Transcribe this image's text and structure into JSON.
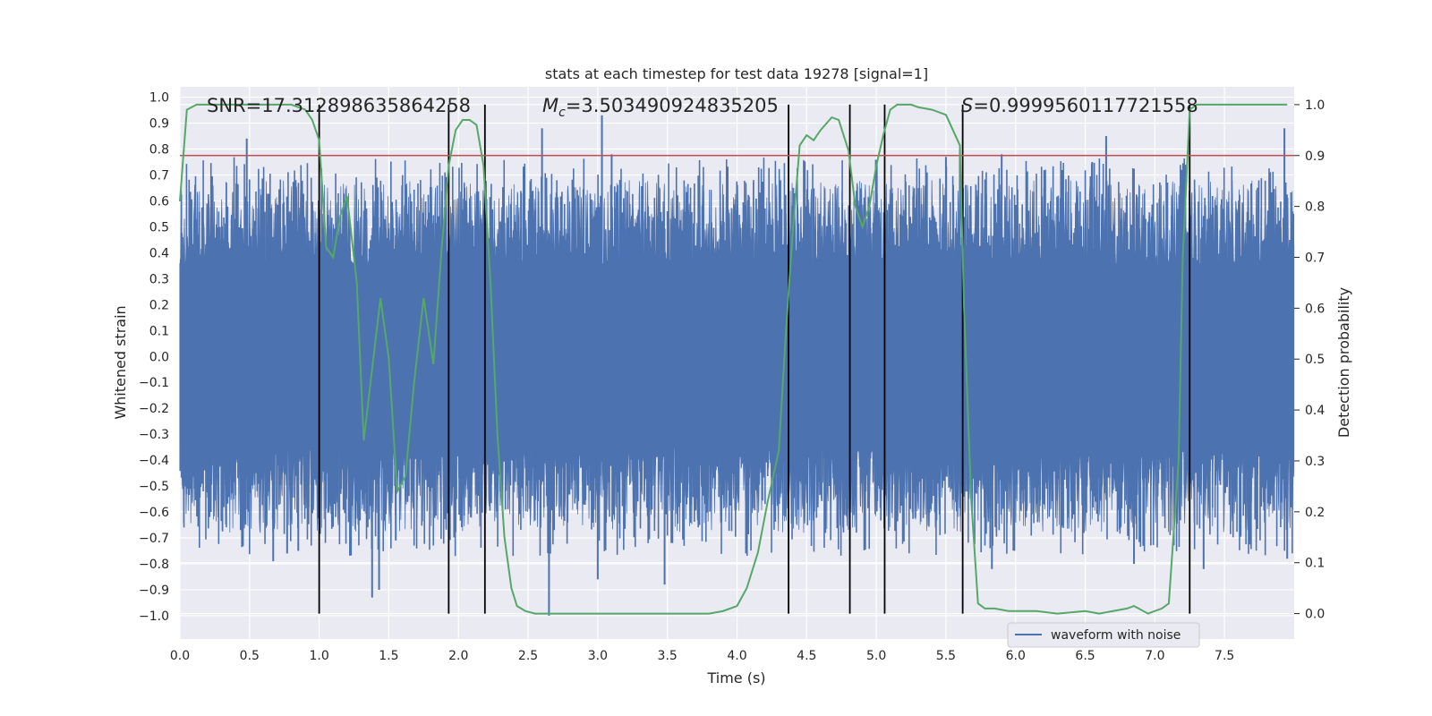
{
  "chart_data": {
    "type": "line",
    "title": "stats at each timestep for test data 19278 [signal=1]",
    "xlabel": "Time (s)",
    "ylabel_left": "Whitened strain",
    "ylabel_right": "Detection probability",
    "xlim": [
      0.0,
      8.0
    ],
    "ylim_left": [
      -1.09,
      1.04
    ],
    "ylim_right": [
      -0.05,
      1.035
    ],
    "xticks": [
      "0.0",
      "0.5",
      "1.0",
      "1.5",
      "2.0",
      "2.5",
      "3.0",
      "3.5",
      "4.0",
      "4.5",
      "5.0",
      "5.5",
      "6.0",
      "6.5",
      "7.0",
      "7.5"
    ],
    "yticks_left": [
      "1.0",
      "0.9",
      "0.8",
      "0.7",
      "0.6",
      "0.5",
      "0.4",
      "0.3",
      "0.2",
      "0.1",
      "0.0",
      "−0.1",
      "−0.2",
      "−0.3",
      "−0.4",
      "−0.5",
      "−0.6",
      "−0.7",
      "−0.8",
      "−0.9",
      "−1.0"
    ],
    "yticks_right": [
      "1.0",
      "0.9",
      "0.8",
      "0.7",
      "0.6",
      "0.5",
      "0.4",
      "0.3",
      "0.2",
      "0.1",
      "0.0"
    ],
    "annotations": {
      "snr": "SNR=17.312898635864258",
      "mc_symbol": "M",
      "mc_sub": "c",
      "mc_value": "=3.503490924835205",
      "s_symbol": "S",
      "s_value": "=0.9999560117721558"
    },
    "threshold_right": 0.9,
    "waveform": {
      "name": "waveform with noise",
      "color": "#4c72b0",
      "core_amplitude": 0.35,
      "spikes": [
        {
          "t": 0.48,
          "v": 0.84
        },
        {
          "t": 0.67,
          "v": -0.79
        },
        {
          "t": 0.77,
          "v": -0.76
        },
        {
          "t": 0.85,
          "v": -0.75
        },
        {
          "t": 1.38,
          "v": -0.93
        },
        {
          "t": 1.43,
          "v": -0.9
        },
        {
          "t": 1.55,
          "v": -0.71
        },
        {
          "t": 2.6,
          "v": 0.88
        },
        {
          "t": 2.65,
          "v": -1.0
        },
        {
          "t": 3.0,
          "v": -0.86
        },
        {
          "t": 3.03,
          "v": 0.93
        },
        {
          "t": 3.1,
          "v": 0.78
        },
        {
          "t": 3.48,
          "v": -0.88
        },
        {
          "t": 5.6,
          "v": 0.8
        },
        {
          "t": 5.5,
          "v": 0.77
        },
        {
          "t": 5.83,
          "v": -0.82
        },
        {
          "t": 5.9,
          "v": 0.78
        },
        {
          "t": 6.55,
          "v": 0.75
        },
        {
          "t": 6.65,
          "v": 0.85
        },
        {
          "t": 6.85,
          "v": -0.8
        },
        {
          "t": 7.35,
          "v": -0.82
        },
        {
          "t": 7.93,
          "v": 0.88
        },
        {
          "t": 7.95,
          "v": -0.78
        }
      ]
    },
    "probability": {
      "name": "detection probability",
      "color": "#55a868",
      "x": [
        0.0,
        0.05,
        0.12,
        0.2,
        0.3,
        0.5,
        0.7,
        0.8,
        0.9,
        0.95,
        1.0,
        1.05,
        1.1,
        1.15,
        1.2,
        1.27,
        1.32,
        1.38,
        1.44,
        1.5,
        1.56,
        1.62,
        1.68,
        1.75,
        1.82,
        1.88,
        1.93,
        1.98,
        2.03,
        2.08,
        2.13,
        2.18,
        2.23,
        2.28,
        2.33,
        2.38,
        2.42,
        2.48,
        2.55,
        2.6,
        2.7,
        2.9,
        3.2,
        3.4,
        3.6,
        3.8,
        3.9,
        4.0,
        4.07,
        4.15,
        4.22,
        4.3,
        4.35,
        4.4,
        4.45,
        4.5,
        4.55,
        4.6,
        4.68,
        4.73,
        4.8,
        4.85,
        4.9,
        4.95,
        5.0,
        5.05,
        5.1,
        5.15,
        5.2,
        5.25,
        5.3,
        5.4,
        5.5,
        5.55,
        5.6,
        5.63,
        5.68,
        5.73,
        5.78,
        5.85,
        5.95,
        6.05,
        6.15,
        6.3,
        6.5,
        6.6,
        6.7,
        6.8,
        6.85,
        6.95,
        7.05,
        7.1,
        7.17,
        7.2,
        7.25,
        7.3,
        7.35,
        7.5,
        7.7,
        7.95
      ],
      "y": [
        0.81,
        0.99,
        1.0,
        1.0,
        1.0,
        1.0,
        1.0,
        1.0,
        0.99,
        0.97,
        0.93,
        0.72,
        0.7,
        0.78,
        0.82,
        0.65,
        0.34,
        0.48,
        0.62,
        0.5,
        0.24,
        0.27,
        0.45,
        0.62,
        0.49,
        0.72,
        0.88,
        0.95,
        0.97,
        0.97,
        0.96,
        0.88,
        0.65,
        0.35,
        0.15,
        0.05,
        0.015,
        0.005,
        0.0,
        0.0,
        0.0,
        0.0,
        0.0,
        0.0,
        0.0,
        0.0,
        0.005,
        0.015,
        0.05,
        0.12,
        0.22,
        0.32,
        0.55,
        0.75,
        0.92,
        0.94,
        0.93,
        0.95,
        0.975,
        0.97,
        0.91,
        0.8,
        0.76,
        0.8,
        0.88,
        0.94,
        0.99,
        1.0,
        1.0,
        1.0,
        0.995,
        0.99,
        0.98,
        0.95,
        0.92,
        0.6,
        0.23,
        0.02,
        0.01,
        0.01,
        0.005,
        0.005,
        0.005,
        0.0,
        0.005,
        0.0,
        0.005,
        0.01,
        0.015,
        0.0,
        0.01,
        0.02,
        0.3,
        0.7,
        0.99,
        1.0,
        1.0,
        1.0,
        1.0,
        1.0
      ]
    },
    "vertical_lines_time": [
      1.0,
      1.93,
      2.19,
      4.37,
      4.81,
      5.06,
      5.62,
      7.25
    ],
    "legend": {
      "label": "waveform with noise",
      "loc": "lower-right"
    }
  }
}
